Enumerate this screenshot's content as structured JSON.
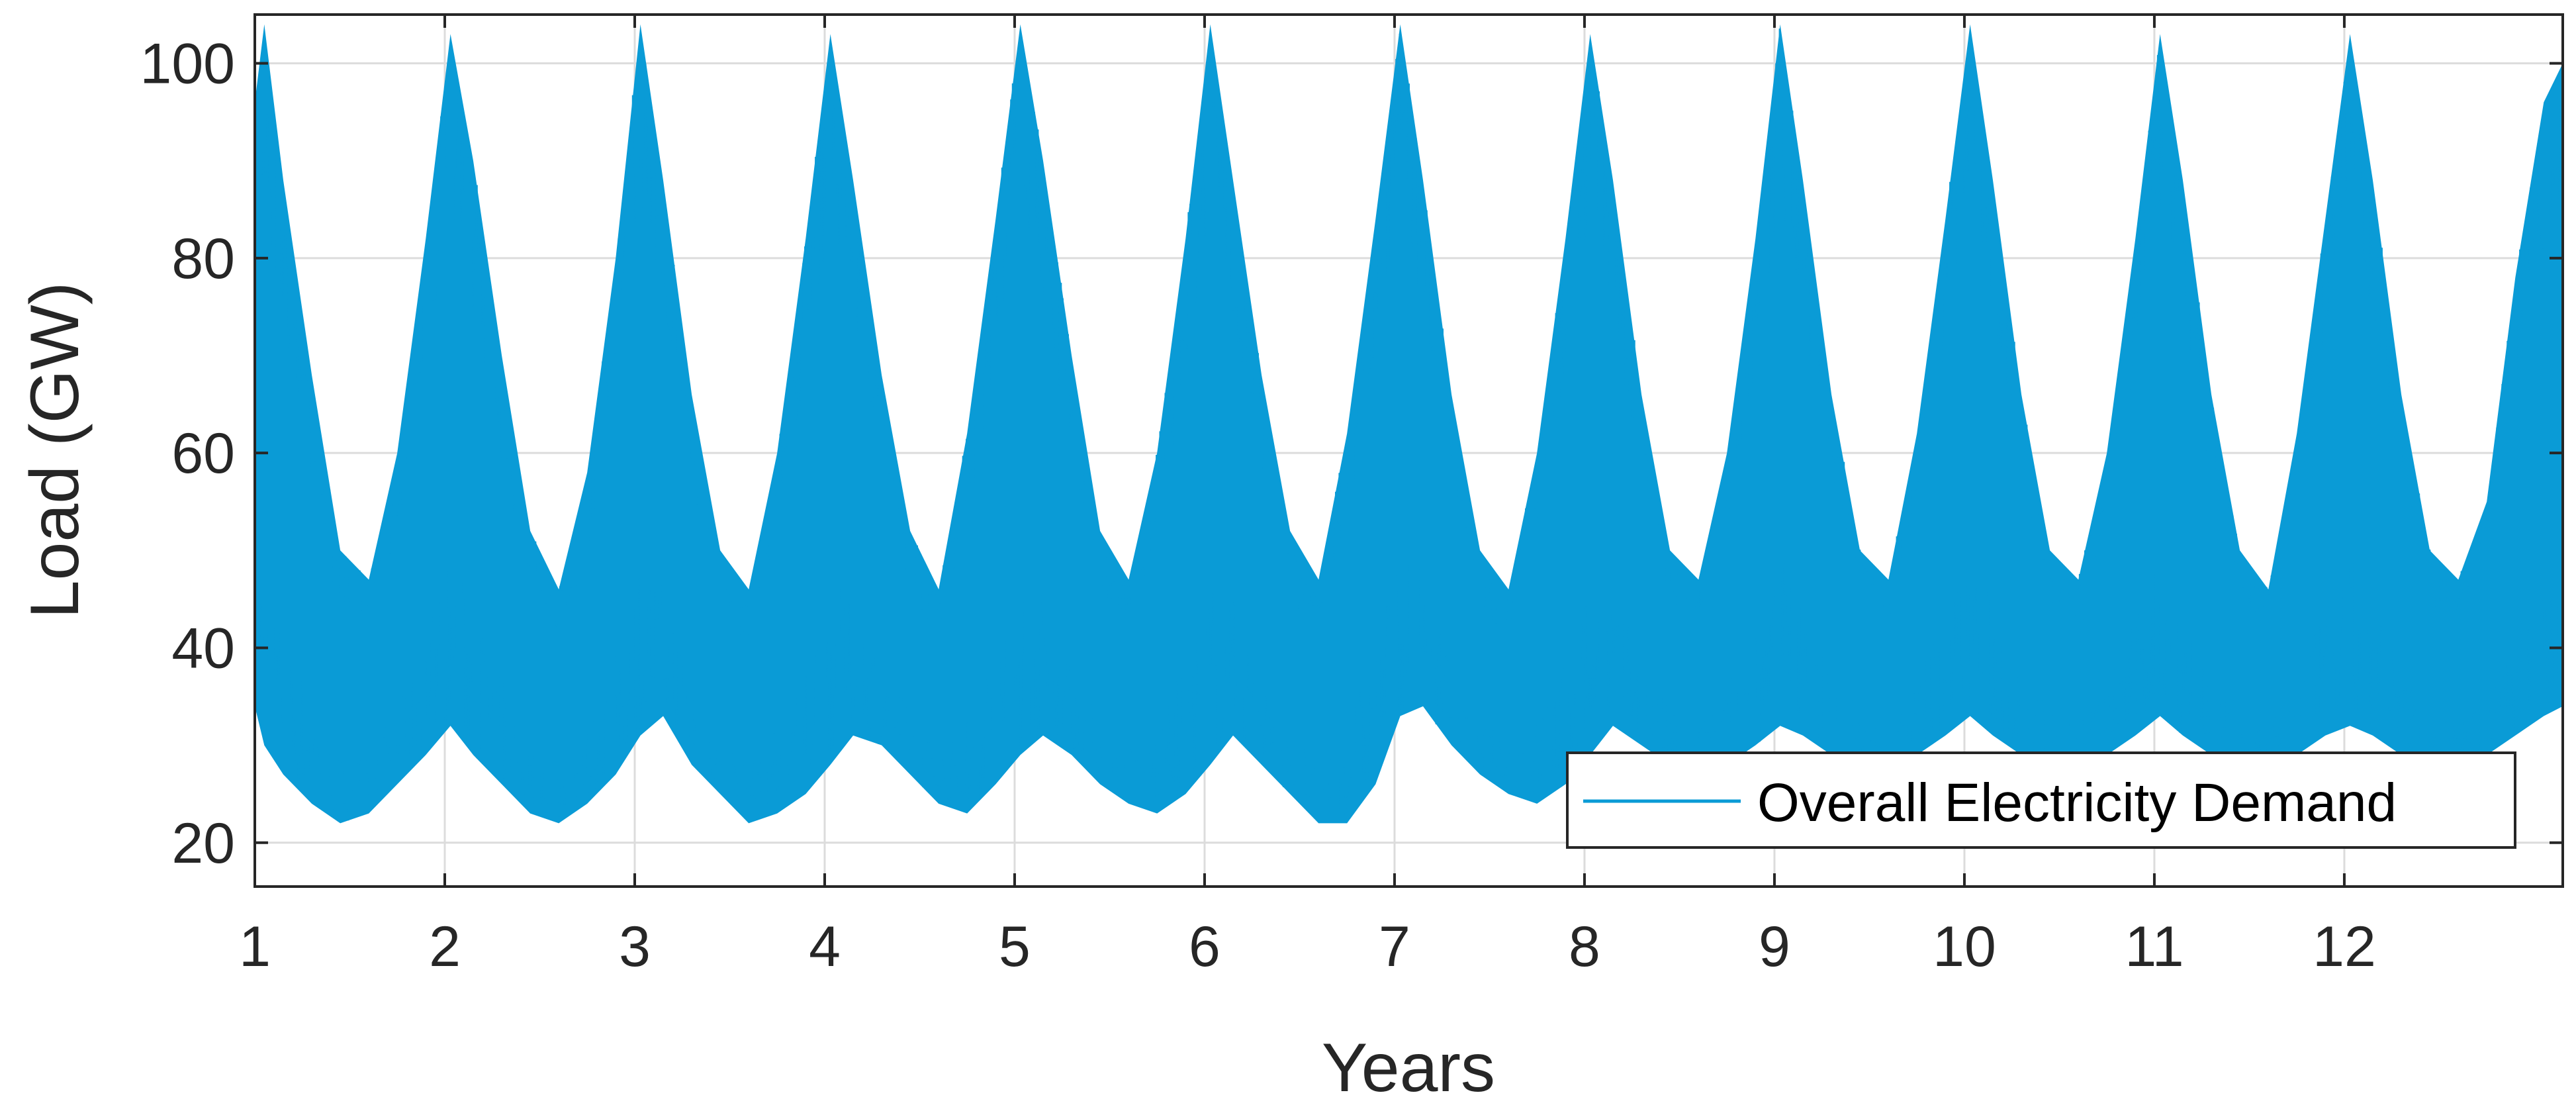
{
  "chart_data": {
    "type": "line",
    "title": "",
    "xlabel": "Years",
    "ylabel": "Load (GW)",
    "xlim": [
      1,
      13.15
    ],
    "ylim": [
      15.5,
      105
    ],
    "xticks": [
      1,
      2,
      3,
      4,
      5,
      6,
      7,
      8,
      9,
      10,
      11,
      12
    ],
    "xtick_labels": [
      "1",
      "2",
      "3",
      "4",
      "5",
      "6",
      "7",
      "8",
      "9",
      "10",
      "11",
      "12"
    ],
    "yticks": [
      20,
      40,
      60,
      80,
      100
    ],
    "ytick_labels": [
      "20",
      "40",
      "60",
      "80",
      "100"
    ],
    "grid": true,
    "legend_position": "bottom-right",
    "series": [
      {
        "name": "Overall Electricity Demand",
        "color": "#0a9bd6",
        "x": [
          1.0,
          1.05,
          1.15,
          1.3,
          1.45,
          1.6,
          1.75,
          1.9,
          2.03,
          2.15,
          2.3,
          2.45,
          2.6,
          2.75,
          2.9,
          3.03,
          3.15,
          3.3,
          3.45,
          3.6,
          3.75,
          3.9,
          4.03,
          4.15,
          4.3,
          4.45,
          4.6,
          4.75,
          4.9,
          5.03,
          5.15,
          5.3,
          5.45,
          5.6,
          5.75,
          5.9,
          6.03,
          6.15,
          6.3,
          6.45,
          6.6,
          6.75,
          6.9,
          7.03,
          7.15,
          7.3,
          7.45,
          7.6,
          7.75,
          7.9,
          8.03,
          8.15,
          8.3,
          8.45,
          8.6,
          8.75,
          8.9,
          9.03,
          9.15,
          9.3,
          9.45,
          9.6,
          9.75,
          9.9,
          10.03,
          10.15,
          10.3,
          10.45,
          10.6,
          10.75,
          10.9,
          11.03,
          11.15,
          11.3,
          11.45,
          11.6,
          11.75,
          11.9,
          12.03,
          12.15,
          12.3,
          12.45,
          12.6,
          12.75,
          12.9,
          13.05,
          13.15
        ],
        "upper": [
          96,
          104,
          88,
          68,
          50,
          47,
          60,
          82,
          103,
          90,
          70,
          52,
          46,
          58,
          80,
          104,
          88,
          66,
          50,
          46,
          60,
          82,
          103,
          88,
          68,
          52,
          46,
          62,
          84,
          104,
          90,
          70,
          52,
          47,
          60,
          82,
          104,
          88,
          68,
          52,
          47,
          62,
          84,
          104,
          88,
          66,
          50,
          46,
          60,
          82,
          103,
          88,
          66,
          50,
          47,
          60,
          82,
          104,
          88,
          66,
          50,
          47,
          62,
          84,
          104,
          88,
          66,
          50,
          47,
          60,
          82,
          103,
          88,
          66,
          50,
          46,
          62,
          84,
          103,
          88,
          66,
          50,
          47,
          55,
          78,
          96,
          100
        ],
        "lower": [
          34,
          30,
          27,
          24,
          22,
          23,
          26,
          29,
          32,
          29,
          26,
          23,
          22,
          24,
          27,
          31,
          33,
          28,
          25,
          22,
          23,
          25,
          28,
          31,
          30,
          27,
          24,
          23,
          26,
          29,
          31,
          29,
          26,
          24,
          23,
          25,
          28,
          31,
          28,
          25,
          22,
          22,
          26,
          33,
          34,
          30,
          27,
          25,
          24,
          26,
          29,
          32,
          30,
          28,
          27,
          28,
          30,
          32,
          31,
          29,
          28,
          27,
          29,
          31,
          33,
          31,
          29,
          28,
          28,
          29,
          31,
          33,
          31,
          29,
          28,
          27,
          29,
          31,
          32,
          31,
          29,
          28,
          28,
          29,
          31,
          33,
          34
        ]
      }
    ]
  }
}
